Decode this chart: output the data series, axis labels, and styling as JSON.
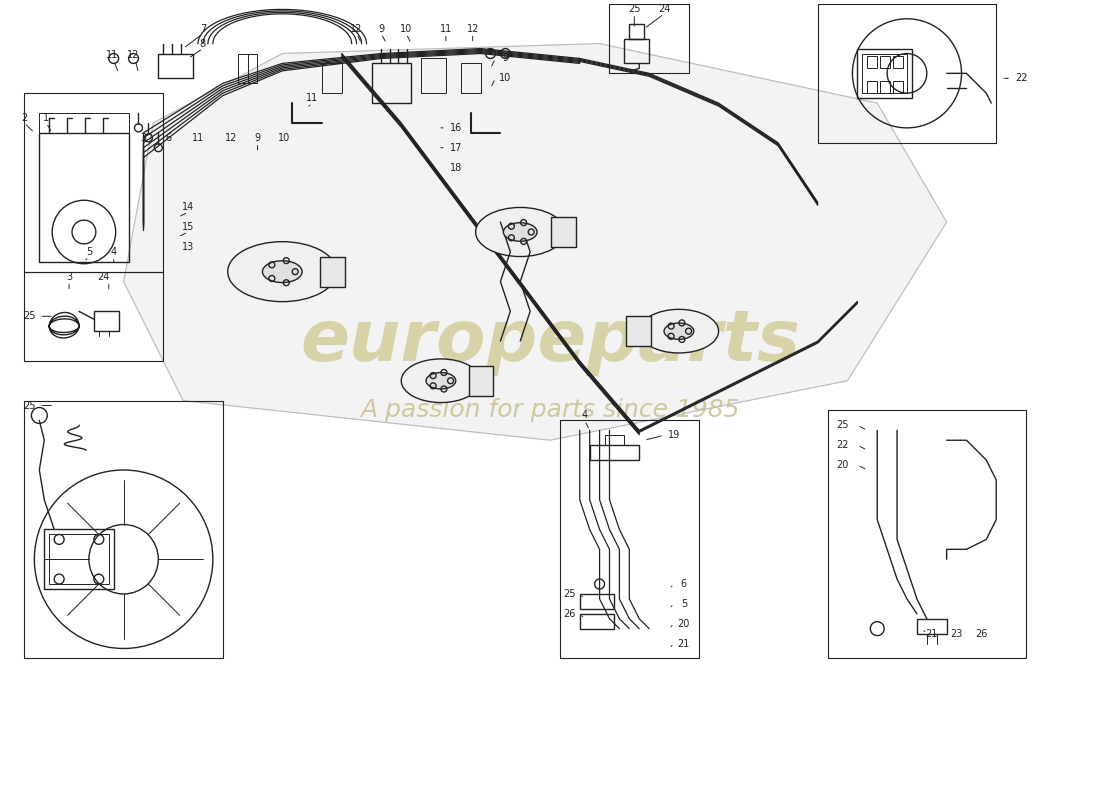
{
  "background_color": "#ffffff",
  "line_color": "#222222",
  "gray_line": "#cccccc",
  "watermark_color1": "#d4cfa0",
  "watermark_color2": "#c8c090",
  "fig_width": 11.0,
  "fig_height": 8.0,
  "dpi": 100
}
